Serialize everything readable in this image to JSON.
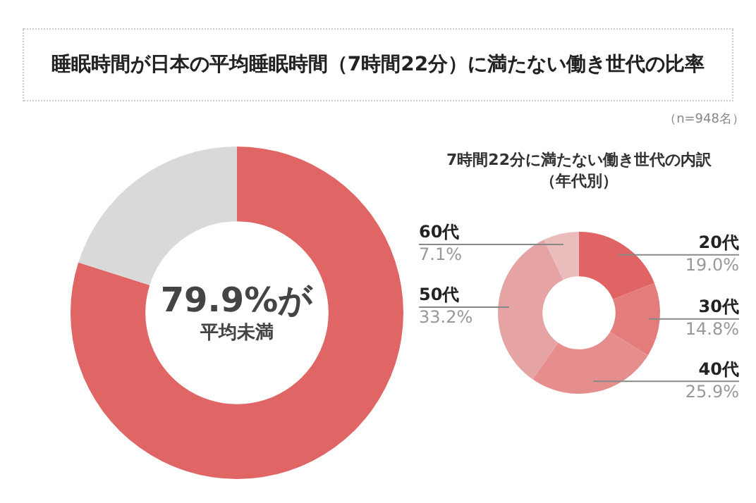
{
  "chart_data": [
    {
      "type": "donut",
      "title": "睡眠時間が日本の平均睡眠時間（7時間22分）に満たない働き世代の比率",
      "categories": [
        null,
        null
      ],
      "values": [
        79.9,
        20.1
      ],
      "colors": [
        "#e06666",
        "#d9d9d9"
      ],
      "annotations": [
        "79.9%が",
        "平均未満"
      ],
      "legend": false
    },
    {
      "type": "donut",
      "title": "7時間22分に満たない働き世代の内訳（年代別）",
      "categories": [
        "20代",
        "30代",
        "40代",
        "50代",
        "60代"
      ],
      "values": [
        19.0,
        14.8,
        25.9,
        33.2,
        7.1
      ],
      "value_labels": [
        "19.0%",
        "14.8%",
        "25.9%",
        "33.2%",
        "7.1%"
      ],
      "colors": [
        "#e06464",
        "#e57c7c",
        "#e68e8e",
        "#e5a3a3",
        "#ebbcbc"
      ],
      "annotations": [
        "（n=948名）"
      ],
      "legend": false
    }
  ]
}
